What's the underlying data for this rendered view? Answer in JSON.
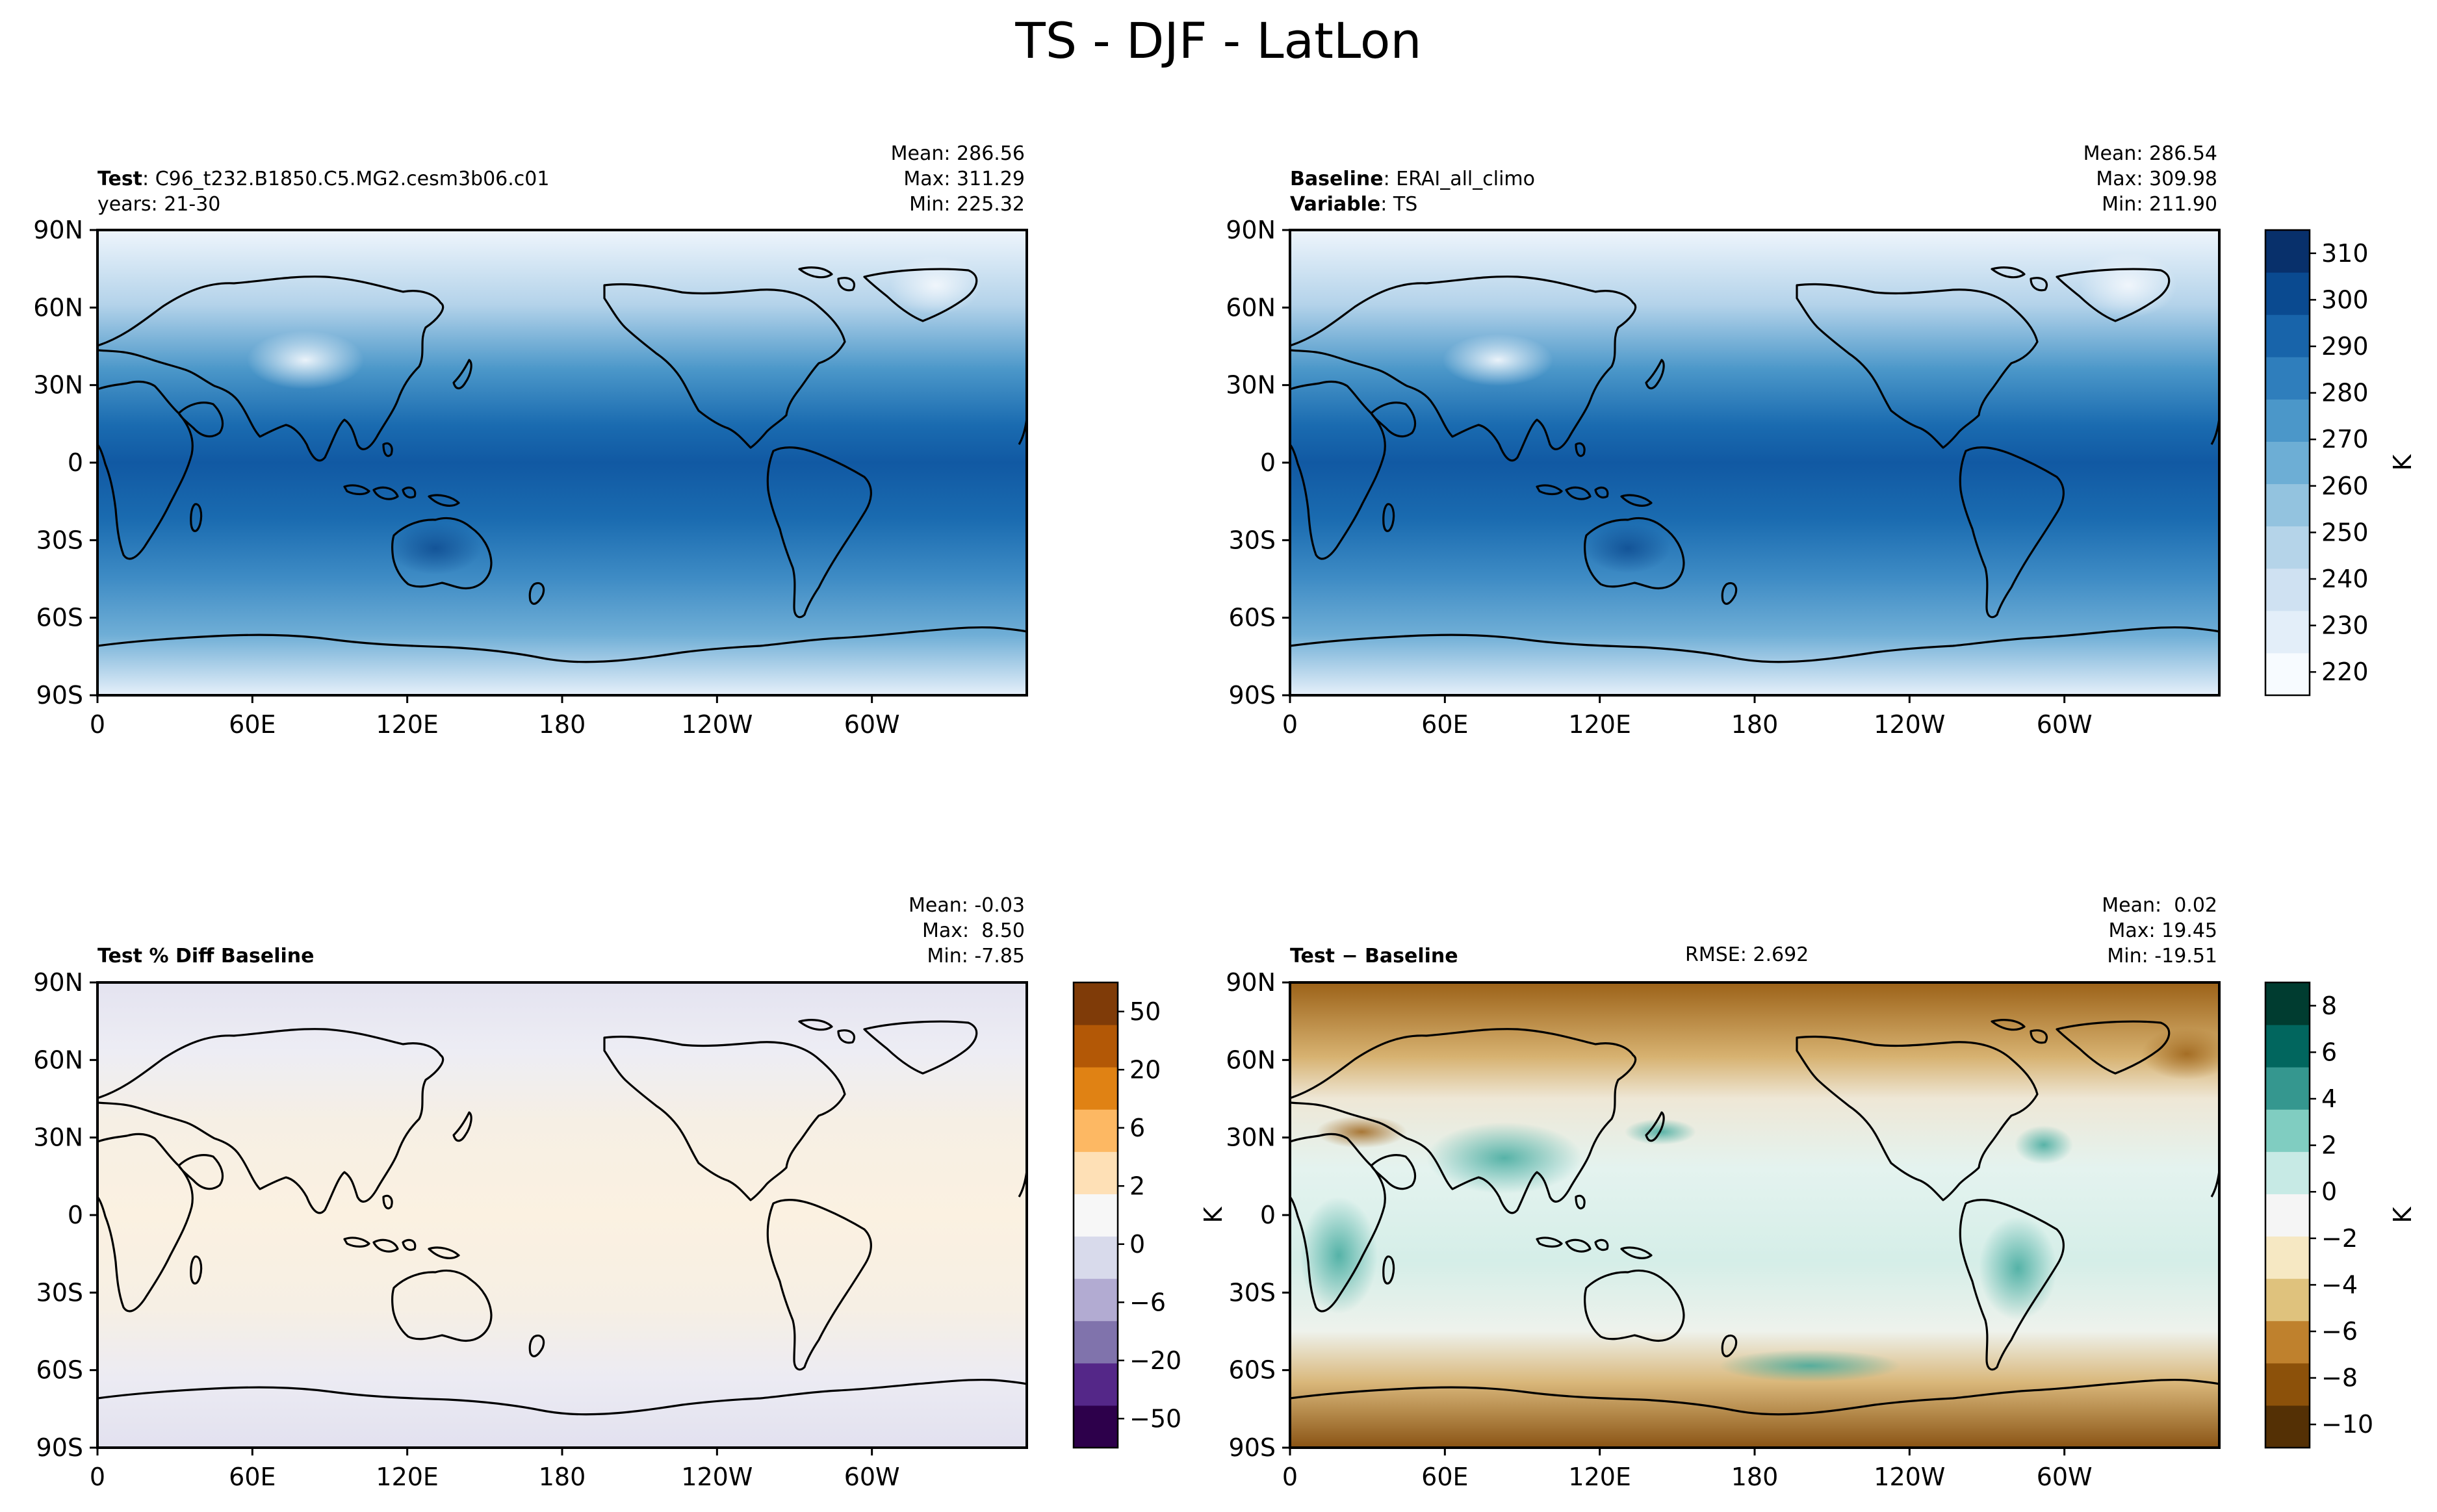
{
  "figure": {
    "title": "TS - DJF - LatLon"
  },
  "axes": {
    "lon_ticks": [
      "0",
      "60E",
      "120E",
      "180",
      "120W",
      "60W"
    ],
    "lat_ticks": [
      "90N",
      "60N",
      "30N",
      "0",
      "30S",
      "60S",
      "90S"
    ]
  },
  "panels": {
    "test": {
      "label_name": "Test",
      "label_value": "C96_t232.B1850.C5.MG2.cesm3b06.c01",
      "years": "years: 21-30",
      "mean": "Mean: 286.56",
      "max": "Max: 311.29",
      "min": "Min: 225.32"
    },
    "baseline": {
      "label_name": "Baseline",
      "label_value": "ERAI_all_climo",
      "variable_name": "Variable",
      "variable_value": "TS",
      "mean": "Mean: 286.54",
      "max": "Max: 309.98",
      "min": "Min: 211.90"
    },
    "pctdiff": {
      "label": "Test % Diff Baseline",
      "mean": "Mean: -0.03",
      "max": "Max:  8.50",
      "min": "Min: -7.85"
    },
    "diff": {
      "label": "Test − Baseline",
      "rmse": "RMSE: 2.692",
      "mean": "Mean:  0.02",
      "max": "Max: 19.45",
      "min": "Min: -19.51"
    }
  },
  "colorbars": {
    "temperature": {
      "unit": "K",
      "ticks": [
        "310",
        "300",
        "290",
        "280",
        "270",
        "260",
        "250",
        "240",
        "230",
        "220"
      ],
      "colors": [
        "#f7fbff",
        "#e3eef9",
        "#cfe1f2",
        "#b5d4e9",
        "#93c3df",
        "#6daed5",
        "#4b97c9",
        "#2f7ebc",
        "#1864aa",
        "#0a4a90",
        "#08306b"
      ]
    },
    "pctdiff": {
      "ticks": [
        "50",
        "20",
        "6",
        "2",
        "0",
        "−6",
        "−20",
        "−50"
      ],
      "colors": [
        "#2d004b",
        "#542788",
        "#8073ac",
        "#b2abd2",
        "#d8daeb",
        "#f7f7f7",
        "#fee0b6",
        "#fdb863",
        "#e08214",
        "#b35806",
        "#7f3b08"
      ]
    },
    "diff": {
      "unit": "K",
      "ticks": [
        "8",
        "6",
        "4",
        "2",
        "0",
        "−2",
        "−4",
        "−6",
        "−8",
        "−10"
      ],
      "colors": [
        "#543005",
        "#8c510a",
        "#bf812d",
        "#dfc27d",
        "#f6e8c3",
        "#f5f5f5",
        "#c7eae5",
        "#80cdc1",
        "#35978f",
        "#01665e",
        "#003c30"
      ]
    }
  },
  "map_colors": {
    "coast": "#000000",
    "temp_cold": "#eef5fc",
    "temp_mid": "#4b97c9",
    "temp_warm": "#1159a3",
    "pct_bg": "#f3f0f0",
    "pct_warm": "#fbf0e0",
    "pct_cool": "#e6e6f2",
    "diff_bg": "#e8f4f1",
    "diff_brown": "#9c6218",
    "diff_teal": "#3ea89c"
  }
}
